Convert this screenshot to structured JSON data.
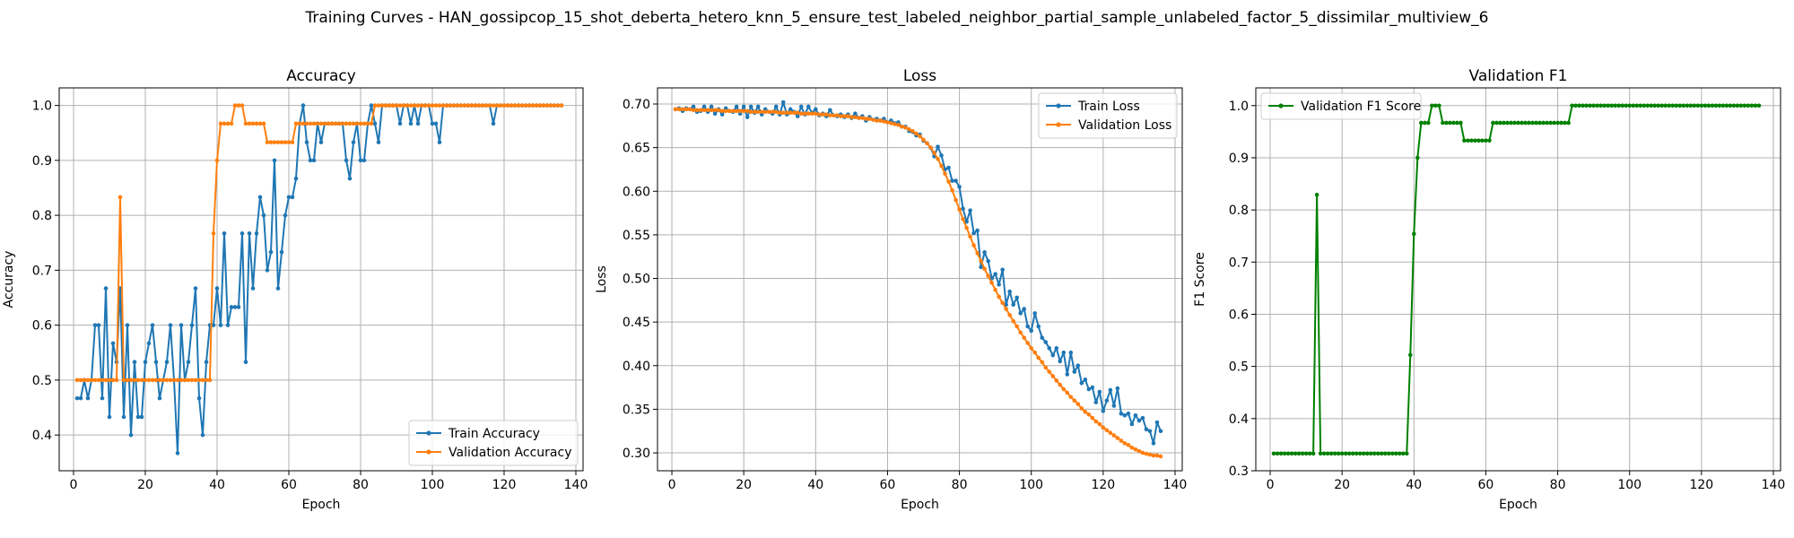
{
  "figure": {
    "suptitle": "Training Curves - HAN_gossipcop_15_shot_deberta_hetero_knn_5_ensure_test_labeled_neighbor_partial_sample_unlabeled_factor_5_dissimilar_multiview_6"
  },
  "colors": {
    "train": "#1f77b4",
    "validation": "#ff7f0e",
    "f1": "#008000",
    "grid": "#b0b0b0"
  },
  "chart_data": [
    {
      "type": "line",
      "title": "Accuracy",
      "xlabel": "Epoch",
      "ylabel": "Accuracy",
      "xlim": [
        -4,
        142
      ],
      "ylim": [
        0.335,
        1.032
      ],
      "xticks": [
        0,
        20,
        40,
        60,
        80,
        100,
        120,
        140
      ],
      "yticks": [
        0.4,
        0.5,
        0.6,
        0.7,
        0.8,
        0.9,
        1.0
      ],
      "ytick_labels": [
        "0.4",
        "0.5",
        "0.6",
        "0.7",
        "0.8",
        "0.9",
        "1.0"
      ],
      "grid": true,
      "legend_position": "lower-right",
      "series": [
        {
          "name": "Train Accuracy",
          "color_key": "train",
          "x_start": 1,
          "values": [
            0.467,
            0.467,
            0.5,
            0.467,
            0.5,
            0.6,
            0.6,
            0.467,
            0.667,
            0.433,
            0.567,
            0.533,
            0.667,
            0.433,
            0.6,
            0.4,
            0.533,
            0.433,
            0.433,
            0.533,
            0.567,
            0.6,
            0.533,
            0.467,
            0.5,
            0.533,
            0.6,
            0.5,
            0.367,
            0.6,
            0.5,
            0.533,
            0.6,
            0.667,
            0.467,
            0.4,
            0.533,
            0.6,
            0.6,
            0.667,
            0.6,
            0.767,
            0.6,
            0.633,
            0.633,
            0.633,
            0.767,
            0.533,
            0.767,
            0.667,
            0.767,
            0.833,
            0.8,
            0.7,
            0.733,
            0.9,
            0.667,
            0.733,
            0.8,
            0.833,
            0.833,
            0.867,
            0.967,
            1.0,
            0.933,
            0.9,
            0.9,
            0.967,
            0.933,
            0.967,
            0.967,
            0.967,
            0.967,
            0.967,
            0.967,
            0.9,
            0.867,
            0.933,
            0.967,
            0.9,
            0.9,
            0.967,
            1.0,
            0.967,
            0.933,
            1.0,
            1.0,
            1.0,
            1.0,
            1.0,
            0.967,
            1.0,
            1.0,
            0.967,
            1.0,
            0.967,
            1.0,
            1.0,
            1.0,
            0.967,
            0.967,
            0.933,
            1.0,
            1.0,
            1.0,
            1.0,
            1.0,
            1.0,
            1.0,
            1.0,
            1.0,
            1.0,
            1.0,
            1.0,
            1.0,
            1.0,
            0.967,
            1.0,
            1.0,
            1.0,
            1.0,
            1.0,
            1.0,
            1.0,
            1.0,
            1.0,
            1.0,
            1.0,
            1.0,
            1.0,
            1.0,
            1.0,
            1.0,
            1.0,
            1.0,
            1.0
          ]
        },
        {
          "name": "Validation Accuracy",
          "color_key": "validation",
          "x_start": 1,
          "values": [
            0.5,
            0.5,
            0.5,
            0.5,
            0.5,
            0.5,
            0.5,
            0.5,
            0.5,
            0.5,
            0.5,
            0.5,
            0.833,
            0.5,
            0.5,
            0.5,
            0.5,
            0.5,
            0.5,
            0.5,
            0.5,
            0.5,
            0.5,
            0.5,
            0.5,
            0.5,
            0.5,
            0.5,
            0.5,
            0.5,
            0.5,
            0.5,
            0.5,
            0.5,
            0.5,
            0.5,
            0.5,
            0.5,
            0.767,
            0.9,
            0.967,
            0.967,
            0.967,
            0.967,
            1.0,
            1.0,
            1.0,
            0.967,
            0.967,
            0.967,
            0.967,
            0.967,
            0.967,
            0.933,
            0.933,
            0.933,
            0.933,
            0.933,
            0.933,
            0.933,
            0.933,
            0.967,
            0.967,
            0.967,
            0.967,
            0.967,
            0.967,
            0.967,
            0.967,
            0.967,
            0.967,
            0.967,
            0.967,
            0.967,
            0.967,
            0.967,
            0.967,
            0.967,
            0.967,
            0.967,
            0.967,
            0.967,
            0.967,
            1.0,
            1.0,
            1.0,
            1.0,
            1.0,
            1.0,
            1.0,
            1.0,
            1.0,
            1.0,
            1.0,
            1.0,
            1.0,
            1.0,
            1.0,
            1.0,
            1.0,
            1.0,
            1.0,
            1.0,
            1.0,
            1.0,
            1.0,
            1.0,
            1.0,
            1.0,
            1.0,
            1.0,
            1.0,
            1.0,
            1.0,
            1.0,
            1.0,
            1.0,
            1.0,
            1.0,
            1.0,
            1.0,
            1.0,
            1.0,
            1.0,
            1.0,
            1.0,
            1.0,
            1.0,
            1.0,
            1.0,
            1.0,
            1.0,
            1.0,
            1.0,
            1.0,
            1.0
          ]
        }
      ]
    },
    {
      "type": "line",
      "title": "Loss",
      "xlabel": "Epoch",
      "ylabel": "Loss",
      "xlim": [
        -4,
        142
      ],
      "ylim": [
        0.2795,
        0.7185
      ],
      "xticks": [
        0,
        20,
        40,
        60,
        80,
        100,
        120,
        140
      ],
      "yticks": [
        0.3,
        0.35,
        0.4,
        0.45,
        0.5,
        0.55,
        0.6,
        0.65,
        0.7
      ],
      "ytick_labels": [
        "0.30",
        "0.35",
        "0.40",
        "0.45",
        "0.50",
        "0.55",
        "0.60",
        "0.65",
        "0.70"
      ],
      "grid": true,
      "legend_position": "upper-right",
      "series": [
        {
          "name": "Train Loss",
          "color_key": "train",
          "x_start": 1,
          "values": [
            0.694,
            0.695,
            0.692,
            0.695,
            0.694,
            0.697,
            0.691,
            0.692,
            0.697,
            0.691,
            0.697,
            0.689,
            0.694,
            0.688,
            0.695,
            0.692,
            0.691,
            0.697,
            0.689,
            0.697,
            0.685,
            0.697,
            0.69,
            0.697,
            0.688,
            0.694,
            0.691,
            0.689,
            0.697,
            0.688,
            0.702,
            0.688,
            0.694,
            0.691,
            0.686,
            0.697,
            0.688,
            0.697,
            0.69,
            0.694,
            0.687,
            0.689,
            0.686,
            0.693,
            0.687,
            0.686,
            0.688,
            0.685,
            0.688,
            0.684,
            0.689,
            0.684,
            0.686,
            0.681,
            0.685,
            0.682,
            0.683,
            0.681,
            0.683,
            0.679,
            0.681,
            0.678,
            0.679,
            0.674,
            0.674,
            0.669,
            0.668,
            0.664,
            0.665,
            0.658,
            0.655,
            0.65,
            0.64,
            0.651,
            0.641,
            0.625,
            0.627,
            0.612,
            0.612,
            0.605,
            0.58,
            0.565,
            0.578,
            0.552,
            0.555,
            0.513,
            0.53,
            0.52,
            0.5,
            0.505,
            0.493,
            0.51,
            0.47,
            0.485,
            0.47,
            0.478,
            0.46,
            0.465,
            0.445,
            0.44,
            0.46,
            0.445,
            0.432,
            0.427,
            0.42,
            0.412,
            0.42,
            0.405,
            0.415,
            0.39,
            0.415,
            0.393,
            0.4,
            0.38,
            0.384,
            0.373,
            0.375,
            0.358,
            0.37,
            0.348,
            0.36,
            0.372,
            0.354,
            0.374,
            0.345,
            0.343,
            0.345,
            0.333,
            0.343,
            0.337,
            0.34,
            0.327,
            0.325,
            0.311,
            0.335,
            0.325
          ]
        },
        {
          "name": "Validation Loss",
          "color_key": "validation",
          "x_start": 1,
          "values": [
            0.694,
            0.694,
            0.694,
            0.694,
            0.694,
            0.693,
            0.693,
            0.693,
            0.693,
            0.693,
            0.693,
            0.693,
            0.693,
            0.692,
            0.692,
            0.692,
            0.692,
            0.692,
            0.692,
            0.692,
            0.692,
            0.691,
            0.691,
            0.691,
            0.691,
            0.691,
            0.691,
            0.691,
            0.691,
            0.69,
            0.69,
            0.69,
            0.69,
            0.69,
            0.69,
            0.689,
            0.689,
            0.689,
            0.689,
            0.689,
            0.688,
            0.688,
            0.688,
            0.687,
            0.687,
            0.687,
            0.686,
            0.686,
            0.686,
            0.685,
            0.685,
            0.684,
            0.684,
            0.683,
            0.683,
            0.682,
            0.681,
            0.681,
            0.68,
            0.679,
            0.678,
            0.677,
            0.676,
            0.674,
            0.673,
            0.671,
            0.669,
            0.666,
            0.663,
            0.659,
            0.655,
            0.65,
            0.644,
            0.637,
            0.629,
            0.62,
            0.611,
            0.601,
            0.59,
            0.579,
            0.568,
            0.558,
            0.548,
            0.538,
            0.529,
            0.52,
            0.511,
            0.503,
            0.495,
            0.487,
            0.479,
            0.472,
            0.465,
            0.458,
            0.451,
            0.445,
            0.438,
            0.432,
            0.426,
            0.42,
            0.415,
            0.409,
            0.404,
            0.398,
            0.393,
            0.388,
            0.383,
            0.378,
            0.373,
            0.369,
            0.364,
            0.36,
            0.356,
            0.351,
            0.347,
            0.344,
            0.34,
            0.336,
            0.333,
            0.329,
            0.326,
            0.323,
            0.32,
            0.317,
            0.314,
            0.311,
            0.309,
            0.306,
            0.304,
            0.302,
            0.3,
            0.299,
            0.298,
            0.297,
            0.297,
            0.296
          ]
        }
      ]
    },
    {
      "type": "line",
      "title": "Validation F1",
      "xlabel": "Epoch",
      "ylabel": "F1 Score",
      "xlim": [
        -4,
        142
      ],
      "ylim": [
        0.3,
        1.034
      ],
      "xticks": [
        0,
        20,
        40,
        60,
        80,
        100,
        120,
        140
      ],
      "yticks": [
        0.3,
        0.4,
        0.5,
        0.6,
        0.7,
        0.8,
        0.9,
        1.0
      ],
      "ytick_labels": [
        "0.3",
        "0.4",
        "0.5",
        "0.6",
        "0.7",
        "0.8",
        "0.9",
        "1.0"
      ],
      "grid": true,
      "legend_position": "upper-left",
      "series": [
        {
          "name": "Validation F1 Score",
          "color_key": "f1",
          "x_start": 1,
          "values": [
            0.333,
            0.333,
            0.333,
            0.333,
            0.333,
            0.333,
            0.333,
            0.333,
            0.333,
            0.333,
            0.333,
            0.333,
            0.829,
            0.333,
            0.333,
            0.333,
            0.333,
            0.333,
            0.333,
            0.333,
            0.333,
            0.333,
            0.333,
            0.333,
            0.333,
            0.333,
            0.333,
            0.333,
            0.333,
            0.333,
            0.333,
            0.333,
            0.333,
            0.333,
            0.333,
            0.333,
            0.333,
            0.333,
            0.522,
            0.754,
            0.9,
            0.967,
            0.967,
            0.967,
            1.0,
            1.0,
            1.0,
            0.967,
            0.967,
            0.967,
            0.967,
            0.967,
            0.967,
            0.933,
            0.933,
            0.933,
            0.933,
            0.933,
            0.933,
            0.933,
            0.933,
            0.967,
            0.967,
            0.967,
            0.967,
            0.967,
            0.967,
            0.967,
            0.967,
            0.967,
            0.967,
            0.967,
            0.967,
            0.967,
            0.967,
            0.967,
            0.967,
            0.967,
            0.967,
            0.967,
            0.967,
            0.967,
            0.967,
            1.0,
            1.0,
            1.0,
            1.0,
            1.0,
            1.0,
            1.0,
            1.0,
            1.0,
            1.0,
            1.0,
            1.0,
            1.0,
            1.0,
            1.0,
            1.0,
            1.0,
            1.0,
            1.0,
            1.0,
            1.0,
            1.0,
            1.0,
            1.0,
            1.0,
            1.0,
            1.0,
            1.0,
            1.0,
            1.0,
            1.0,
            1.0,
            1.0,
            1.0,
            1.0,
            1.0,
            1.0,
            1.0,
            1.0,
            1.0,
            1.0,
            1.0,
            1.0,
            1.0,
            1.0,
            1.0,
            1.0,
            1.0,
            1.0,
            1.0,
            1.0,
            1.0,
            1.0
          ]
        }
      ]
    }
  ]
}
